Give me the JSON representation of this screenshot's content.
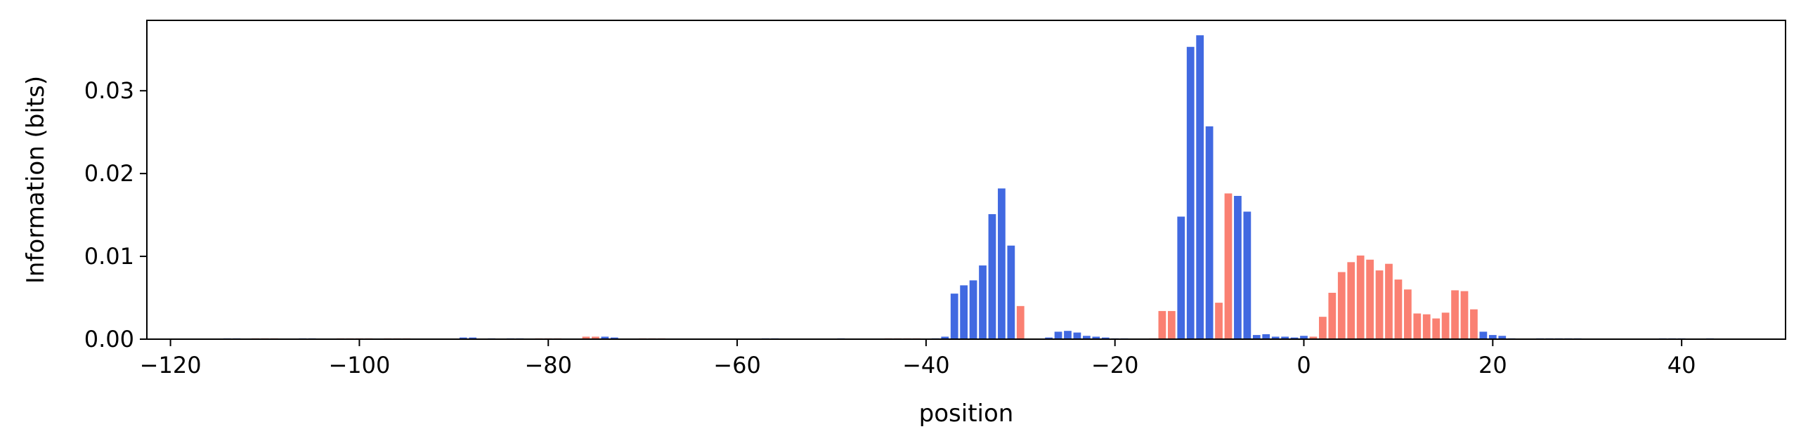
{
  "chart_data": {
    "type": "bar",
    "title": "",
    "xlabel": "position",
    "ylabel": "Information (bits)",
    "xlim": [
      -122.5,
      51
    ],
    "ylim": [
      0,
      0.0385
    ],
    "xticks": [
      -120,
      -100,
      -80,
      -60,
      -40,
      -20,
      0,
      20,
      40
    ],
    "xtick_labels": [
      "−120",
      "−100",
      "−80",
      "−60",
      "−40",
      "−20",
      "0",
      "20",
      "40"
    ],
    "yticks": [
      0,
      0.01,
      0.02,
      0.03
    ],
    "ytick_labels": [
      "0.00",
      "0.01",
      "0.02",
      "0.03"
    ],
    "grid": false,
    "legend": "none",
    "colors": {
      "positive": "#4169E1",
      "negative": "#FA8072"
    },
    "series": [
      {
        "color_key": "positive",
        "x": [
          -114,
          -113,
          -106,
          -105,
          -89,
          -88,
          -86,
          -84,
          -83,
          -74,
          -73,
          -57,
          -56,
          -49,
          -39,
          -38,
          -37,
          -36,
          -35,
          -34,
          -33,
          -32,
          -31,
          -27,
          -26,
          -25,
          -24,
          -23,
          -22,
          -21,
          -20,
          -19,
          -13,
          -12,
          -11,
          -10,
          -7,
          -6,
          -5,
          -4,
          -3,
          -2,
          -1,
          0,
          19,
          20,
          21,
          22,
          25,
          26,
          27,
          28,
          29,
          38,
          39,
          40,
          43
        ],
        "values": [
          0.0001,
          0.0001,
          0.0001,
          0.0001,
          0.0002,
          0.0002,
          0.0001,
          0.0001,
          0.0001,
          0.0003,
          0.0002,
          0.0001,
          0.0001,
          0.0001,
          0.0001,
          0.0003,
          0.0055,
          0.0065,
          0.0071,
          0.0089,
          0.0151,
          0.0182,
          0.0113,
          0.0002,
          0.0009,
          0.001,
          0.0008,
          0.0004,
          0.0003,
          0.0002,
          0.0001,
          0.0001,
          0.0148,
          0.0353,
          0.0367,
          0.0257,
          0.0173,
          0.0154,
          0.0005,
          0.0006,
          0.0003,
          0.0003,
          0.0002,
          0.0004,
          0.0009,
          0.0005,
          0.0004,
          0.0001,
          0.0001,
          0.0001,
          0.0001,
          0.0001,
          0.0001,
          0.0001,
          0.0001,
          0.0001,
          0.0001
        ]
      },
      {
        "color_key": "negative",
        "x": [
          -111,
          -110,
          -109,
          -102,
          -101,
          -100,
          -99,
          -97,
          -96,
          -95,
          -81,
          -80,
          -79,
          -76,
          -75,
          -70,
          -69,
          -68,
          -44,
          -43,
          -42,
          -41,
          -30,
          -16,
          -15,
          -14,
          -9,
          -8,
          1,
          2,
          3,
          4,
          5,
          6,
          7,
          8,
          9,
          10,
          11,
          12,
          13,
          14,
          15,
          16,
          17,
          18
        ],
        "values": [
          0.0001,
          0.0001,
          0.0001,
          0.0001,
          0.0001,
          0.0001,
          0.0001,
          0.0001,
          0.0001,
          0.0001,
          0.0001,
          0.0001,
          0.0001,
          0.0003,
          0.0003,
          0.0001,
          0.0001,
          0.0001,
          0.0001,
          0.0001,
          0.0001,
          0.0001,
          0.004,
          0.0001,
          0.0034,
          0.0034,
          0.0044,
          0.0176,
          0.0003,
          0.0027,
          0.0056,
          0.0081,
          0.0093,
          0.0101,
          0.0096,
          0.0083,
          0.0091,
          0.0072,
          0.006,
          0.0031,
          0.003,
          0.0025,
          0.0032,
          0.0059,
          0.0058,
          0.0036
        ]
      }
    ]
  }
}
